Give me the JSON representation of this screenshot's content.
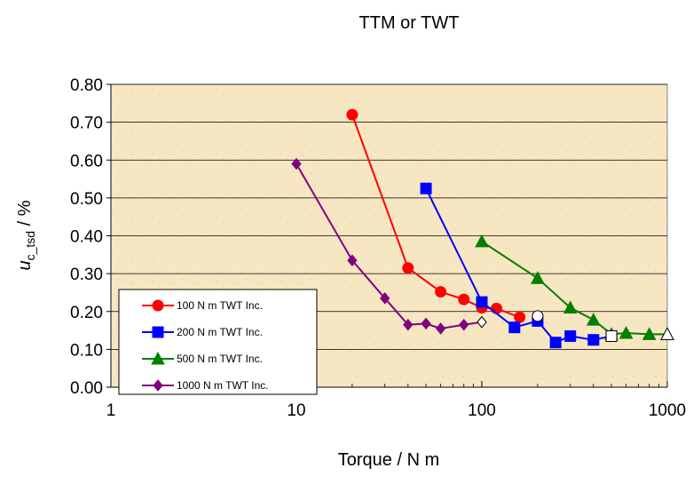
{
  "chart_data": {
    "type": "line",
    "title": "TTM or TWT",
    "xlabel": "Torque / N m",
    "ylabel_main": "u",
    "ylabel_sub": "c_tsd",
    "ylabel_unit": " / %",
    "xscale": "log",
    "xlim": [
      1,
      1000
    ],
    "ylim": [
      0,
      0.8
    ],
    "x_ticks": [
      1,
      10,
      100,
      1000
    ],
    "x_tick_labels": [
      "1",
      "10",
      "100",
      "1000"
    ],
    "y_ticks": [
      0,
      0.1,
      0.2,
      0.3,
      0.4,
      0.5,
      0.6,
      0.7,
      0.8
    ],
    "y_tick_labels": [
      "0.00",
      "0.10",
      "0.20",
      "0.30",
      "0.40",
      "0.50",
      "0.60",
      "0.70",
      "0.80"
    ],
    "grid": "horizontal",
    "legend_position": "bottom-left",
    "background": "parchment",
    "series": [
      {
        "name": "100 N m TWT Inc.",
        "color": "#ff0000",
        "marker": "circle",
        "x": [
          20,
          40,
          60,
          80,
          100,
          120,
          160
        ],
        "y": [
          0.72,
          0.315,
          0.252,
          0.232,
          0.21,
          0.208,
          0.185
        ]
      },
      {
        "name": "200 N m TWT Inc.",
        "color": "#0000ff",
        "marker": "square",
        "x": [
          50,
          100,
          150,
          200,
          250,
          300,
          400,
          500
        ],
        "y": [
          0.525,
          0.225,
          0.158,
          0.175,
          0.118,
          0.135,
          0.125,
          0.135
        ]
      },
      {
        "name": "500 N m TWT Inc.",
        "color": "#008000",
        "marker": "triangle",
        "x": [
          100,
          200,
          300,
          400,
          500,
          600,
          800,
          1000
        ],
        "y": [
          0.385,
          0.288,
          0.21,
          0.178,
          0.14,
          0.143,
          0.14,
          0.14
        ]
      },
      {
        "name": "1000 N m TWT Inc.",
        "color": "#800080",
        "marker": "diamond",
        "x": [
          10,
          20,
          30,
          40,
          50,
          60,
          80,
          100
        ],
        "y": [
          0.59,
          0.335,
          0.235,
          0.165,
          0.168,
          0.155,
          0.165,
          0.172
        ]
      }
    ],
    "open_markers": [
      {
        "series": "100 N m TWT Inc.",
        "x": 200,
        "y": 0.188,
        "marker": "circle"
      },
      {
        "series": "200 N m TWT Inc.",
        "x": 500,
        "y": 0.135,
        "marker": "square"
      },
      {
        "series": "500 N m TWT Inc.",
        "x": 1000,
        "y": 0.14,
        "marker": "triangle"
      },
      {
        "series": "1000 N m TWT Inc.",
        "x": 100,
        "y": 0.172,
        "marker": "diamond"
      }
    ]
  }
}
